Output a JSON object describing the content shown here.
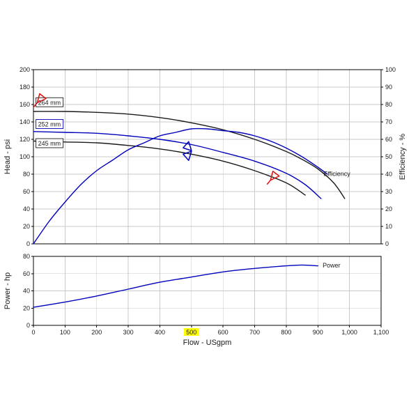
{
  "colors": {
    "background": "#ffffff",
    "grid": "#c9c9c9",
    "frame": "#000000",
    "curve_black": "#1a1a1a",
    "accent_blue": "#0000bb",
    "accent_red": "#dd1111",
    "highlight_yellow": "#ffff00"
  },
  "chart_data": [
    {
      "type": "line",
      "name": "head-efficiency-plot",
      "xlabel": "Flow - USgpm",
      "ylabel_left": "Head - psi",
      "ylabel_right": "Efficiency - %",
      "xlim": [
        0,
        1100
      ],
      "x_tick_step": 100,
      "x_tick_labels": [
        "0",
        "100",
        "200",
        "300",
        "400",
        "500",
        "600",
        "700",
        "800",
        "900",
        "1,000",
        "1,100"
      ],
      "highlighted_x_tick": "500",
      "ylim_left": [
        0,
        200
      ],
      "y_tick_step_left": 20,
      "ylim_right": [
        0,
        100
      ],
      "y_tick_step_right": 10,
      "grid": true,
      "series": [
        {
          "name": "264 mm",
          "axis": "left",
          "color": "#1a1a1a",
          "points": [
            [
              0,
              152
            ],
            [
              100,
              152
            ],
            [
              200,
              151
            ],
            [
              300,
              149
            ],
            [
              400,
              145
            ],
            [
              500,
              139
            ],
            [
              600,
              131
            ],
            [
              700,
              120
            ],
            [
              800,
              106
            ],
            [
              850,
              97
            ],
            [
              900,
              86
            ],
            [
              950,
              70
            ],
            [
              985,
              52
            ]
          ]
        },
        {
          "name": "252 mm",
          "axis": "left",
          "color": "#0000bb",
          "points": [
            [
              0,
              129
            ],
            [
              100,
              128
            ],
            [
              200,
              127
            ],
            [
              300,
              124
            ],
            [
              400,
              120
            ],
            [
              500,
              114
            ],
            [
              600,
              105
            ],
            [
              700,
              95
            ],
            [
              800,
              81
            ],
            [
              860,
              68
            ],
            [
              910,
              52
            ]
          ]
        },
        {
          "name": "245 mm",
          "axis": "left",
          "color": "#1a1a1a",
          "points": [
            [
              0,
              118
            ],
            [
              100,
              117
            ],
            [
              200,
              116
            ],
            [
              300,
              113
            ],
            [
              400,
              109
            ],
            [
              500,
              103
            ],
            [
              600,
              95
            ],
            [
              700,
              84
            ],
            [
              800,
              70
            ],
            [
              860,
              56
            ]
          ]
        },
        {
          "name": "Efficiency",
          "axis": "right",
          "color": "#0000bb",
          "points": [
            [
              0,
              0
            ],
            [
              50,
              13
            ],
            [
              100,
              24
            ],
            [
              150,
              34
            ],
            [
              200,
              42
            ],
            [
              250,
              48
            ],
            [
              300,
              54
            ],
            [
              350,
              58
            ],
            [
              400,
              62
            ],
            [
              450,
              64
            ],
            [
              500,
              66
            ],
            [
              550,
              66
            ],
            [
              600,
              65
            ],
            [
              650,
              64
            ],
            [
              700,
              62
            ],
            [
              750,
              59
            ],
            [
              800,
              55
            ],
            [
              850,
              50
            ],
            [
              900,
              44
            ],
            [
              930,
              40
            ]
          ]
        }
      ],
      "curve_labels": [
        {
          "text": "264 mm",
          "x": 8,
          "y": 159,
          "axis": "left",
          "color": "#1a1a1a",
          "boxed": true
        },
        {
          "text": "252 mm",
          "x": 8,
          "y": 134,
          "axis": "left",
          "color": "#0000bb",
          "boxed": true
        },
        {
          "text": "245 mm",
          "x": 8,
          "y": 112,
          "axis": "left",
          "color": "#1a1a1a",
          "boxed": true
        },
        {
          "text": "Efficiency",
          "x": 918,
          "y": 39,
          "axis": "right",
          "color": "#0000bb",
          "boxed": false
        }
      ],
      "markers": [
        {
          "shape": "flag",
          "x": 12,
          "y": 162,
          "color": "#dd1111",
          "name": "shutoff-marker"
        },
        {
          "shape": "double-flag",
          "x": 500,
          "y": 107,
          "color": "#0000bb",
          "name": "duty-point-marker"
        },
        {
          "shape": "flag",
          "x": 750,
          "y": 73,
          "color": "#dd1111",
          "name": "runout-marker"
        }
      ]
    },
    {
      "type": "line",
      "name": "power-plot",
      "ylabel_left": "Power - hp",
      "ylim_left": [
        0,
        80
      ],
      "y_tick_step_left": 20,
      "grid": true,
      "series": [
        {
          "name": "Power",
          "axis": "left",
          "color": "#0000bb",
          "points": [
            [
              0,
              21
            ],
            [
              100,
              27
            ],
            [
              200,
              34
            ],
            [
              300,
              42
            ],
            [
              400,
              50
            ],
            [
              500,
              56
            ],
            [
              600,
              62
            ],
            [
              700,
              66
            ],
            [
              800,
              69
            ],
            [
              850,
              70
            ],
            [
              900,
              69
            ]
          ]
        }
      ],
      "curve_labels": [
        {
          "text": "Power",
          "x": 915,
          "y": 67,
          "axis": "left",
          "color": "#0000bb",
          "boxed": false
        }
      ],
      "markers": []
    }
  ]
}
